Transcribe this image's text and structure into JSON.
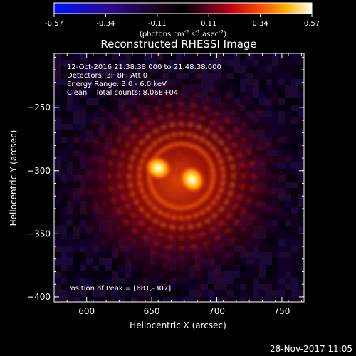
{
  "colorbar": {
    "ticks": [
      "-0.57",
      "-0.34",
      "-0.11",
      "0.11",
      "0.34",
      "0.57"
    ],
    "unit_prefix": "(photons cm",
    "unit_exp1": "-2",
    "unit_mid1": " s",
    "unit_exp2": "-1",
    "unit_mid2": " asec",
    "unit_exp3": "-2",
    "unit_suffix": ")"
  },
  "chart_data": {
    "type": "heatmap",
    "title": "Reconstructed RHESSI Image",
    "xlabel": "Heliocentric X (arcsec)",
    "ylabel": "Heliocentric Y (arcsec)",
    "xlim": [
      575,
      767
    ],
    "ylim": [
      -404,
      -207
    ],
    "xticks": [
      600,
      650,
      700,
      750
    ],
    "yticks": [
      -250,
      -300,
      -350,
      -400
    ],
    "colorbar_range": [
      -0.57,
      0.57
    ],
    "sources": [
      {
        "x": 681,
        "y": -307,
        "intensity": 0.57
      },
      {
        "x": 655,
        "y": -298,
        "intensity": 0.5
      }
    ],
    "peak": {
      "x": 681,
      "y": -307
    },
    "annotations": {
      "line1": "12-Oct-2016 21:38:38.000 to 21:48:38.000",
      "line2": "Detectors: 3F 8F, Att 0",
      "line3": "Energy Range: 3.0 - 6.0 keV",
      "line4_left": "Clean",
      "line4_right": "Total counts: 8.06E+04",
      "peak_label": "Position of Peak = [681,-307]"
    }
  },
  "footer": {
    "date": "28-Nov-2017 11:05"
  }
}
